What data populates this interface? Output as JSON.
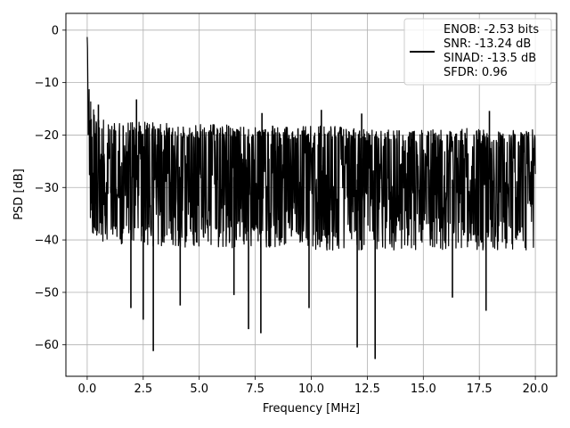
{
  "chart_data": {
    "type": "line",
    "title": "",
    "xlabel": "Frequency [MHz]",
    "ylabel": "PSD [dB]",
    "xlim": [
      -0.95,
      20.95
    ],
    "ylim": [
      -66.0,
      3.2
    ],
    "xticks": [
      0.0,
      2.5,
      5.0,
      7.5,
      10.0,
      12.5,
      15.0,
      17.5,
      20.0
    ],
    "xtick_labels": [
      "0.0",
      "2.5",
      "5.0",
      "7.5",
      "10.0",
      "12.5",
      "15.0",
      "17.5",
      "20.0"
    ],
    "yticks": [
      0,
      -10,
      -20,
      -30,
      -40,
      -50,
      -60
    ],
    "ytick_labels": [
      "0",
      "−10",
      "−20",
      "−30",
      "−40",
      "−50",
      "−60"
    ],
    "grid": true,
    "legend_position": "top-right",
    "line_color": "#000000",
    "legend_entries": [
      "ENOB: -2.53 bits",
      "SNR: -13.24 dB",
      "SINAD: -13.5 dB",
      "SFDR: 0.96"
    ],
    "series": [
      {
        "x": [
          0.0,
          0.05,
          0.1,
          0.15,
          0.2,
          0.3,
          0.4,
          0.5,
          0.7,
          1.0,
          1.5,
          2.0,
          2.5,
          3.0,
          4.0,
          5.0,
          6.0,
          7.0,
          8.0,
          9.0,
          10.0,
          11.0,
          12.0,
          13.0,
          14.0,
          15.0,
          16.0,
          17.0,
          18.0,
          19.0,
          20.0
        ],
        "envelope_upper": [
          0,
          -5,
          -9,
          -12,
          -13.5,
          -15,
          -16,
          -16.5,
          -17,
          -17.5,
          -17.5,
          -17,
          -17.5,
          -17.5,
          -18,
          -18,
          -18,
          -18,
          -18,
          -18.5,
          -18,
          -18,
          -18.5,
          -19,
          -19,
          -19,
          -19,
          -18.5,
          -19,
          -19,
          -19
        ],
        "envelope_mid": [
          -1,
          -12,
          -20,
          -24,
          -25,
          -26,
          -26.5,
          -27,
          -27,
          -27.5,
          -27.5,
          -28,
          -28,
          -28,
          -28,
          -28,
          -28,
          -28,
          -28,
          -28,
          -28,
          -28.5,
          -28.5,
          -28.5,
          -28.5,
          -28.5,
          -28.5,
          -28.5,
          -28.5,
          -28.5,
          -28.5
        ],
        "envelope_lower": [
          -2,
          -23,
          -30,
          -33,
          -34,
          -36,
          -36,
          -37,
          -37,
          -37,
          -37,
          -37.5,
          -37.5,
          -37.5,
          -37.5,
          -37.5,
          -37.5,
          -37.5,
          -37.5,
          -37.5,
          -38,
          -38,
          -38,
          -38,
          -38,
          -38,
          -38,
          -38,
          -38,
          -38,
          -38
        ],
        "spikes": [
          {
            "x": 1.95,
            "y": -53.0
          },
          {
            "x": 2.5,
            "y": -55.2
          },
          {
            "x": 2.95,
            "y": -61.2
          },
          {
            "x": 4.15,
            "y": -52.5
          },
          {
            "x": 6.55,
            "y": -50.5
          },
          {
            "x": 7.2,
            "y": -57.0
          },
          {
            "x": 7.75,
            "y": -57.8
          },
          {
            "x": 9.9,
            "y": -53.0
          },
          {
            "x": 12.05,
            "y": -60.5
          },
          {
            "x": 12.85,
            "y": -62.7
          },
          {
            "x": 17.8,
            "y": -53.5
          },
          {
            "x": 16.3,
            "y": -51.0
          }
        ],
        "peaks": [
          {
            "x": 2.2,
            "y": -13.2
          },
          {
            "x": 7.8,
            "y": -15.8
          },
          {
            "x": 10.45,
            "y": -15.2
          },
          {
            "x": 12.25,
            "y": -15.9
          },
          {
            "x": 17.95,
            "y": -15.4
          },
          {
            "x": 0.5,
            "y": -14.2
          }
        ]
      }
    ]
  }
}
